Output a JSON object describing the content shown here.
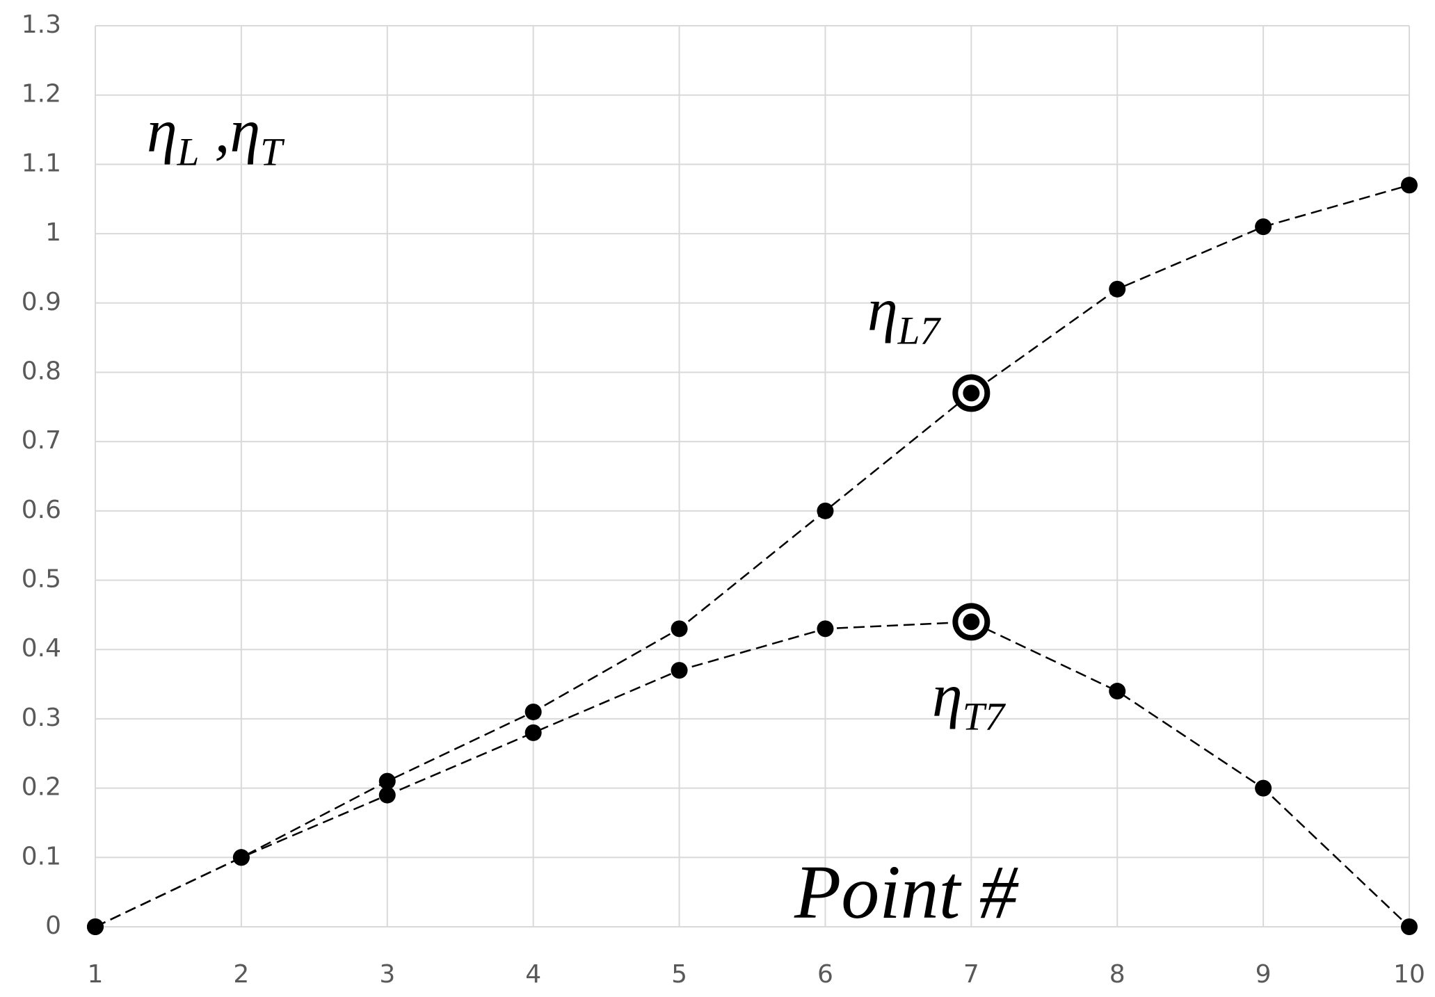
{
  "chart_data": {
    "type": "line",
    "x": [
      1,
      2,
      3,
      4,
      5,
      6,
      7,
      8,
      9,
      10
    ],
    "xlim": [
      1,
      10
    ],
    "xticks": [
      1,
      2,
      3,
      4,
      5,
      6,
      7,
      8,
      9,
      10
    ],
    "ylim": [
      0,
      1.3
    ],
    "yticks": [
      0,
      0.1,
      0.2,
      0.3,
      0.4,
      0.5,
      0.6,
      0.7,
      0.8,
      0.9,
      1,
      1.1,
      1.2,
      1.3
    ],
    "grid": true,
    "y_label_parts": [
      {
        "text": "η"
      },
      {
        "sub": "L"
      },
      {
        "text": " ,η"
      },
      {
        "sub": "T"
      }
    ],
    "x_label": "Point #",
    "series": [
      {
        "color": "#000000",
        "values": [
          0,
          0.1,
          0.21,
          0.31,
          0.43,
          0.6,
          0.77,
          0.92,
          1.01,
          1.07
        ],
        "highlight": [
          6
        ],
        "label_parts": [
          {
            "text": "η"
          },
          {
            "sub": "L7"
          }
        ]
      },
      {
        "color": "#000000",
        "values": [
          0,
          0.1,
          0.19,
          0.28,
          0.37,
          0.43,
          0.44,
          0.34,
          0.2,
          0
        ],
        "highlight": [
          6
        ],
        "label_parts": [
          {
            "text": "η"
          },
          {
            "sub": "T7"
          }
        ]
      }
    ]
  }
}
